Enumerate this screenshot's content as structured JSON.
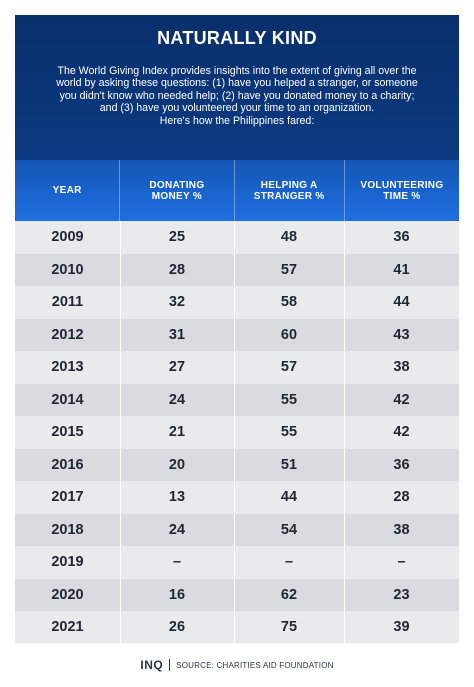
{
  "title": "NATURALLY KIND",
  "intro": [
    "The World Giving Index provides insights into the extent of giving all over the",
    "world by asking these questions: (1) have you helped a stranger, or someone",
    "you didn't know who needed help; (2) have you donated money to a charity;",
    "and (3) have you volunteered your time to an organization.",
    "Here's how the Philippines fared:"
  ],
  "columns": [
    {
      "line1": "YEAR",
      "line2": ""
    },
    {
      "line1": "DONATING",
      "line2": "MONEY %"
    },
    {
      "line1": "HELPING A",
      "line2": "STRANGER %"
    },
    {
      "line1": "VOLUNTEERING",
      "line2": "TIME %"
    }
  ],
  "rows": [
    [
      "2009",
      "25",
      "48",
      "36"
    ],
    [
      "2010",
      "28",
      "57",
      "41"
    ],
    [
      "2011",
      "32",
      "58",
      "44"
    ],
    [
      "2012",
      "31",
      "60",
      "43"
    ],
    [
      "2013",
      "27",
      "57",
      "38"
    ],
    [
      "2014",
      "24",
      "55",
      "42"
    ],
    [
      "2015",
      "21",
      "55",
      "42"
    ],
    [
      "2016",
      "20",
      "51",
      "36"
    ],
    [
      "2017",
      "13",
      "44",
      "28"
    ],
    [
      "2018",
      "24",
      "54",
      "38"
    ],
    [
      "2019",
      "–",
      "–",
      "–"
    ],
    [
      "2020",
      "16",
      "62",
      "23"
    ],
    [
      "2021",
      "26",
      "75",
      "39"
    ]
  ],
  "footer": {
    "logo": "INQ",
    "source": "SOURCE: CHARITIES AID FOUNDATION"
  }
}
